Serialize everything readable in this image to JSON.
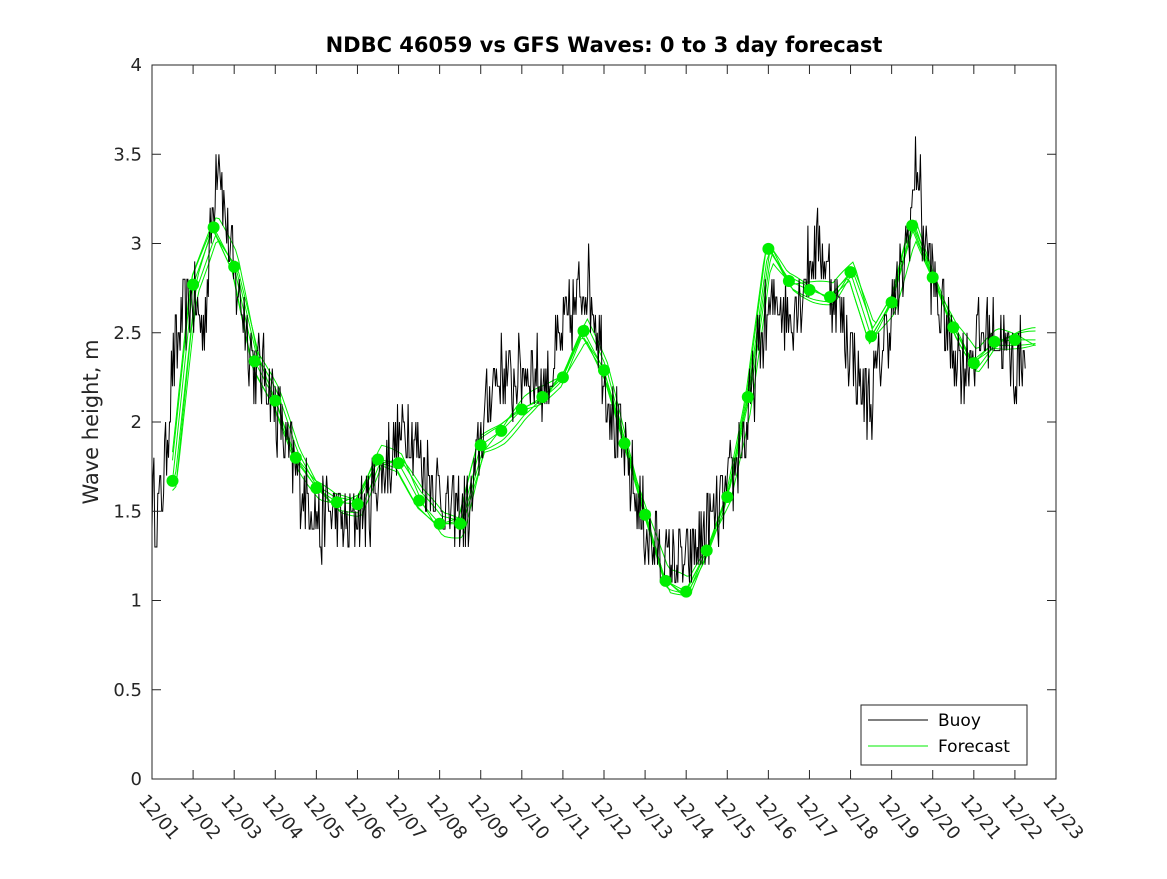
{
  "chart_data": {
    "type": "line",
    "title": "NDBC 46059 vs GFS Waves: 0 to 3 day forecast",
    "xlabel": "",
    "ylabel": "Wave height, m",
    "ylim": [
      0,
      4
    ],
    "yticks": [
      "0",
      "0.5",
      "1",
      "1.5",
      "2",
      "2.5",
      "3",
      "3.5",
      "4"
    ],
    "xlim_days": [
      1,
      23
    ],
    "x_unit": "day of month (December)",
    "xticks": [
      "12/01",
      "12/02",
      "12/03",
      "12/04",
      "12/05",
      "12/06",
      "12/07",
      "12/08",
      "12/09",
      "12/10",
      "12/11",
      "12/12",
      "12/13",
      "12/14",
      "12/15",
      "12/16",
      "12/17",
      "12/18",
      "12/19",
      "12/20",
      "12/21",
      "12/22",
      "12/23"
    ],
    "grid": false,
    "legend": {
      "position": "bottom-right",
      "entries": [
        "Buoy",
        "Forecast"
      ]
    },
    "colors": {
      "buoy": "#000000",
      "forecast": "#00ee00"
    },
    "series": [
      {
        "name": "Buoy",
        "x": [
          1.0,
          1.12,
          1.25,
          1.5,
          1.75,
          2.0,
          2.25,
          2.5,
          2.62,
          2.75,
          3.0,
          3.25,
          3.5,
          3.75,
          4.0,
          4.25,
          4.5,
          4.75,
          5.0,
          5.1,
          5.25,
          5.5,
          5.75,
          6.0,
          6.25,
          6.5,
          6.75,
          7.0,
          7.25,
          7.5,
          7.75,
          8.0,
          8.25,
          8.5,
          8.75,
          9.0,
          9.25,
          9.5,
          9.75,
          10.0,
          10.25,
          10.5,
          10.75,
          11.0,
          11.25,
          11.5,
          11.75,
          12.0,
          12.25,
          12.5,
          12.75,
          13.0,
          13.25,
          13.5,
          13.75,
          14.0,
          14.25,
          14.5,
          14.75,
          15.0,
          15.25,
          15.5,
          15.75,
          16.0,
          16.25,
          16.5,
          16.75,
          17.0,
          17.25,
          17.5,
          17.75,
          18.0,
          18.25,
          18.5,
          18.75,
          19.0,
          19.25,
          19.5,
          19.62,
          19.75,
          20.0,
          20.25,
          20.5,
          20.75,
          21.0,
          21.25,
          21.5,
          21.75,
          22.0,
          22.25
        ],
        "values": [
          1.6,
          1.5,
          1.6,
          2.3,
          2.6,
          2.7,
          2.5,
          3.3,
          3.6,
          3.2,
          2.8,
          2.6,
          2.3,
          2.3,
          2.1,
          1.9,
          1.7,
          1.6,
          1.5,
          1.4,
          1.5,
          1.5,
          1.4,
          1.5,
          1.5,
          1.7,
          1.8,
          1.9,
          2.0,
          1.8,
          1.7,
          1.6,
          1.5,
          1.5,
          1.5,
          1.9,
          2.2,
          2.3,
          2.2,
          2.3,
          2.3,
          2.2,
          2.3,
          2.5,
          2.6,
          2.8,
          2.7,
          2.3,
          2.0,
          1.8,
          1.6,
          1.4,
          1.3,
          1.2,
          1.2,
          1.2,
          1.3,
          1.4,
          1.5,
          1.6,
          1.8,
          2.0,
          2.4,
          2.6,
          2.7,
          2.6,
          2.7,
          2.9,
          3.0,
          2.8,
          2.6,
          2.4,
          2.2,
          2.1,
          2.4,
          2.6,
          2.8,
          3.2,
          3.5,
          3.1,
          2.8,
          2.6,
          2.4,
          2.3,
          2.4,
          2.5,
          2.5,
          2.4,
          2.3,
          2.4
        ]
      },
      {
        "name": "Forecast",
        "x": [
          1.5,
          2.0,
          2.5,
          3.0,
          3.5,
          4.0,
          4.5,
          5.0,
          5.5,
          6.0,
          6.5,
          7.0,
          7.5,
          8.0,
          8.5,
          9.0,
          9.5,
          10.0,
          10.5,
          11.0,
          11.5,
          12.0,
          12.5,
          13.0,
          13.5,
          14.0,
          14.5,
          15.0,
          15.5,
          16.0,
          16.5,
          17.0,
          17.5,
          18.0,
          18.5,
          19.0,
          19.5,
          20.0,
          20.5,
          21.0,
          21.5,
          22.0
        ],
        "values": [
          1.67,
          2.77,
          3.09,
          2.87,
          2.34,
          2.12,
          1.8,
          1.63,
          1.55,
          1.54,
          1.79,
          1.77,
          1.56,
          1.43,
          1.43,
          1.87,
          1.95,
          2.07,
          2.14,
          2.25,
          2.51,
          2.29,
          1.88,
          1.48,
          1.11,
          1.05,
          1.28,
          1.58,
          2.14,
          2.97,
          2.79,
          2.74,
          2.7,
          2.84,
          2.48,
          2.67,
          3.1,
          2.81,
          2.53,
          2.33,
          2.45,
          2.46
        ]
      }
    ]
  }
}
